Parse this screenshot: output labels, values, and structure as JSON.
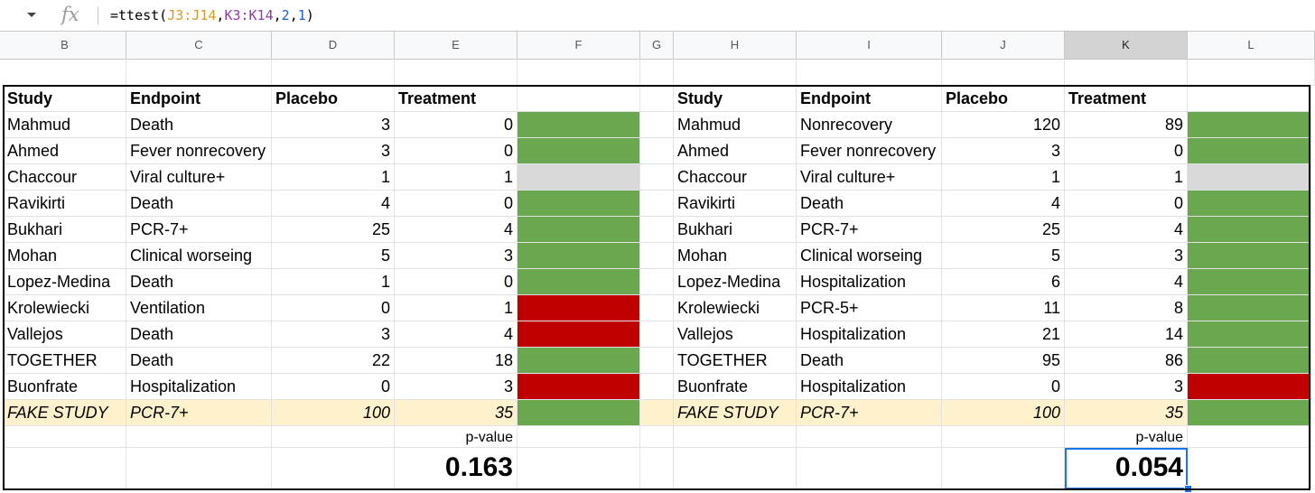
{
  "formula_bar": {
    "fx_label": "fx",
    "formula": {
      "prefix": "=ttest(",
      "range1": "J3:J14",
      "comma1": ",",
      "range2": "K3:K14",
      "comma2": ",",
      "arg3": "2",
      "comma3": ",",
      "arg4": "1",
      "suffix": ")"
    }
  },
  "columns": [
    "B",
    "C",
    "D",
    "E",
    "F",
    "G",
    "H",
    "I",
    "J",
    "K",
    "L"
  ],
  "left_table": {
    "headers": [
      "Study",
      "Endpoint",
      "Placebo",
      "Treatment"
    ],
    "rows": [
      {
        "study": "Mahmud",
        "endpoint": "Death",
        "placebo": "3",
        "treatment": "0",
        "result": "green"
      },
      {
        "study": "Ahmed",
        "endpoint": "Fever nonrecovery",
        "placebo": "3",
        "treatment": "0",
        "result": "green"
      },
      {
        "study": "Chaccour",
        "endpoint": "Viral culture+",
        "placebo": "1",
        "treatment": "1",
        "result": "grey"
      },
      {
        "study": "Ravikirti",
        "endpoint": "Death",
        "placebo": "4",
        "treatment": "0",
        "result": "green"
      },
      {
        "study": "Bukhari",
        "endpoint": "PCR-7+",
        "placebo": "25",
        "treatment": "4",
        "result": "green"
      },
      {
        "study": "Mohan",
        "endpoint": "Clinical worseing",
        "placebo": "5",
        "treatment": "3",
        "result": "green"
      },
      {
        "study": "Lopez-Medina",
        "endpoint": "Death",
        "placebo": "1",
        "treatment": "0",
        "result": "green"
      },
      {
        "study": "Krolewiecki",
        "endpoint": "Ventilation",
        "placebo": "0",
        "treatment": "1",
        "result": "red"
      },
      {
        "study": "Vallejos",
        "endpoint": "Death",
        "placebo": "3",
        "treatment": "4",
        "result": "red"
      },
      {
        "study": "TOGETHER",
        "endpoint": "Death",
        "placebo": "22",
        "treatment": "18",
        "result": "green"
      },
      {
        "study": "Buonfrate",
        "endpoint": "Hospitalization",
        "placebo": "0",
        "treatment": "3",
        "result": "red"
      },
      {
        "study": "FAKE STUDY",
        "endpoint": "PCR-7+",
        "placebo": "100",
        "treatment": "35",
        "result": "green",
        "fake": true
      }
    ],
    "pvalue_label": "p-value",
    "pvalue": "0.163"
  },
  "right_table": {
    "headers": [
      "Study",
      "Endpoint",
      "Placebo",
      "Treatment"
    ],
    "rows": [
      {
        "study": "Mahmud",
        "endpoint": "Nonrecovery",
        "placebo": "120",
        "treatment": "89",
        "result": "green"
      },
      {
        "study": "Ahmed",
        "endpoint": "Fever nonrecovery",
        "placebo": "3",
        "treatment": "0",
        "result": "green"
      },
      {
        "study": "Chaccour",
        "endpoint": "Viral culture+",
        "placebo": "1",
        "treatment": "1",
        "result": "grey"
      },
      {
        "study": "Ravikirti",
        "endpoint": "Death",
        "placebo": "4",
        "treatment": "0",
        "result": "green"
      },
      {
        "study": "Bukhari",
        "endpoint": "PCR-7+",
        "placebo": "25",
        "treatment": "4",
        "result": "green"
      },
      {
        "study": "Mohan",
        "endpoint": "Clinical worseing",
        "placebo": "5",
        "treatment": "3",
        "result": "green"
      },
      {
        "study": "Lopez-Medina",
        "endpoint": "Hospitalization",
        "placebo": "6",
        "treatment": "4",
        "result": "green"
      },
      {
        "study": "Krolewiecki",
        "endpoint": "PCR-5+",
        "placebo": "11",
        "treatment": "8",
        "result": "green"
      },
      {
        "study": "Vallejos",
        "endpoint": "Hospitalization",
        "placebo": "21",
        "treatment": "14",
        "result": "green"
      },
      {
        "study": "TOGETHER",
        "endpoint": "Death",
        "placebo": "95",
        "treatment": "86",
        "result": "green"
      },
      {
        "study": "Buonfrate",
        "endpoint": "Hospitalization",
        "placebo": "0",
        "treatment": "3",
        "result": "red"
      },
      {
        "study": "FAKE STUDY",
        "endpoint": "PCR-7+",
        "placebo": "100",
        "treatment": "35",
        "result": "green",
        "fake": true
      }
    ],
    "pvalue_label": "p-value",
    "pvalue": "0.054"
  },
  "colors": {
    "green": "#6aa84f",
    "red": "#c00000",
    "grey": "#d9d9d9",
    "fake_row": "#fff1cc",
    "selection": "#1a73e8"
  }
}
